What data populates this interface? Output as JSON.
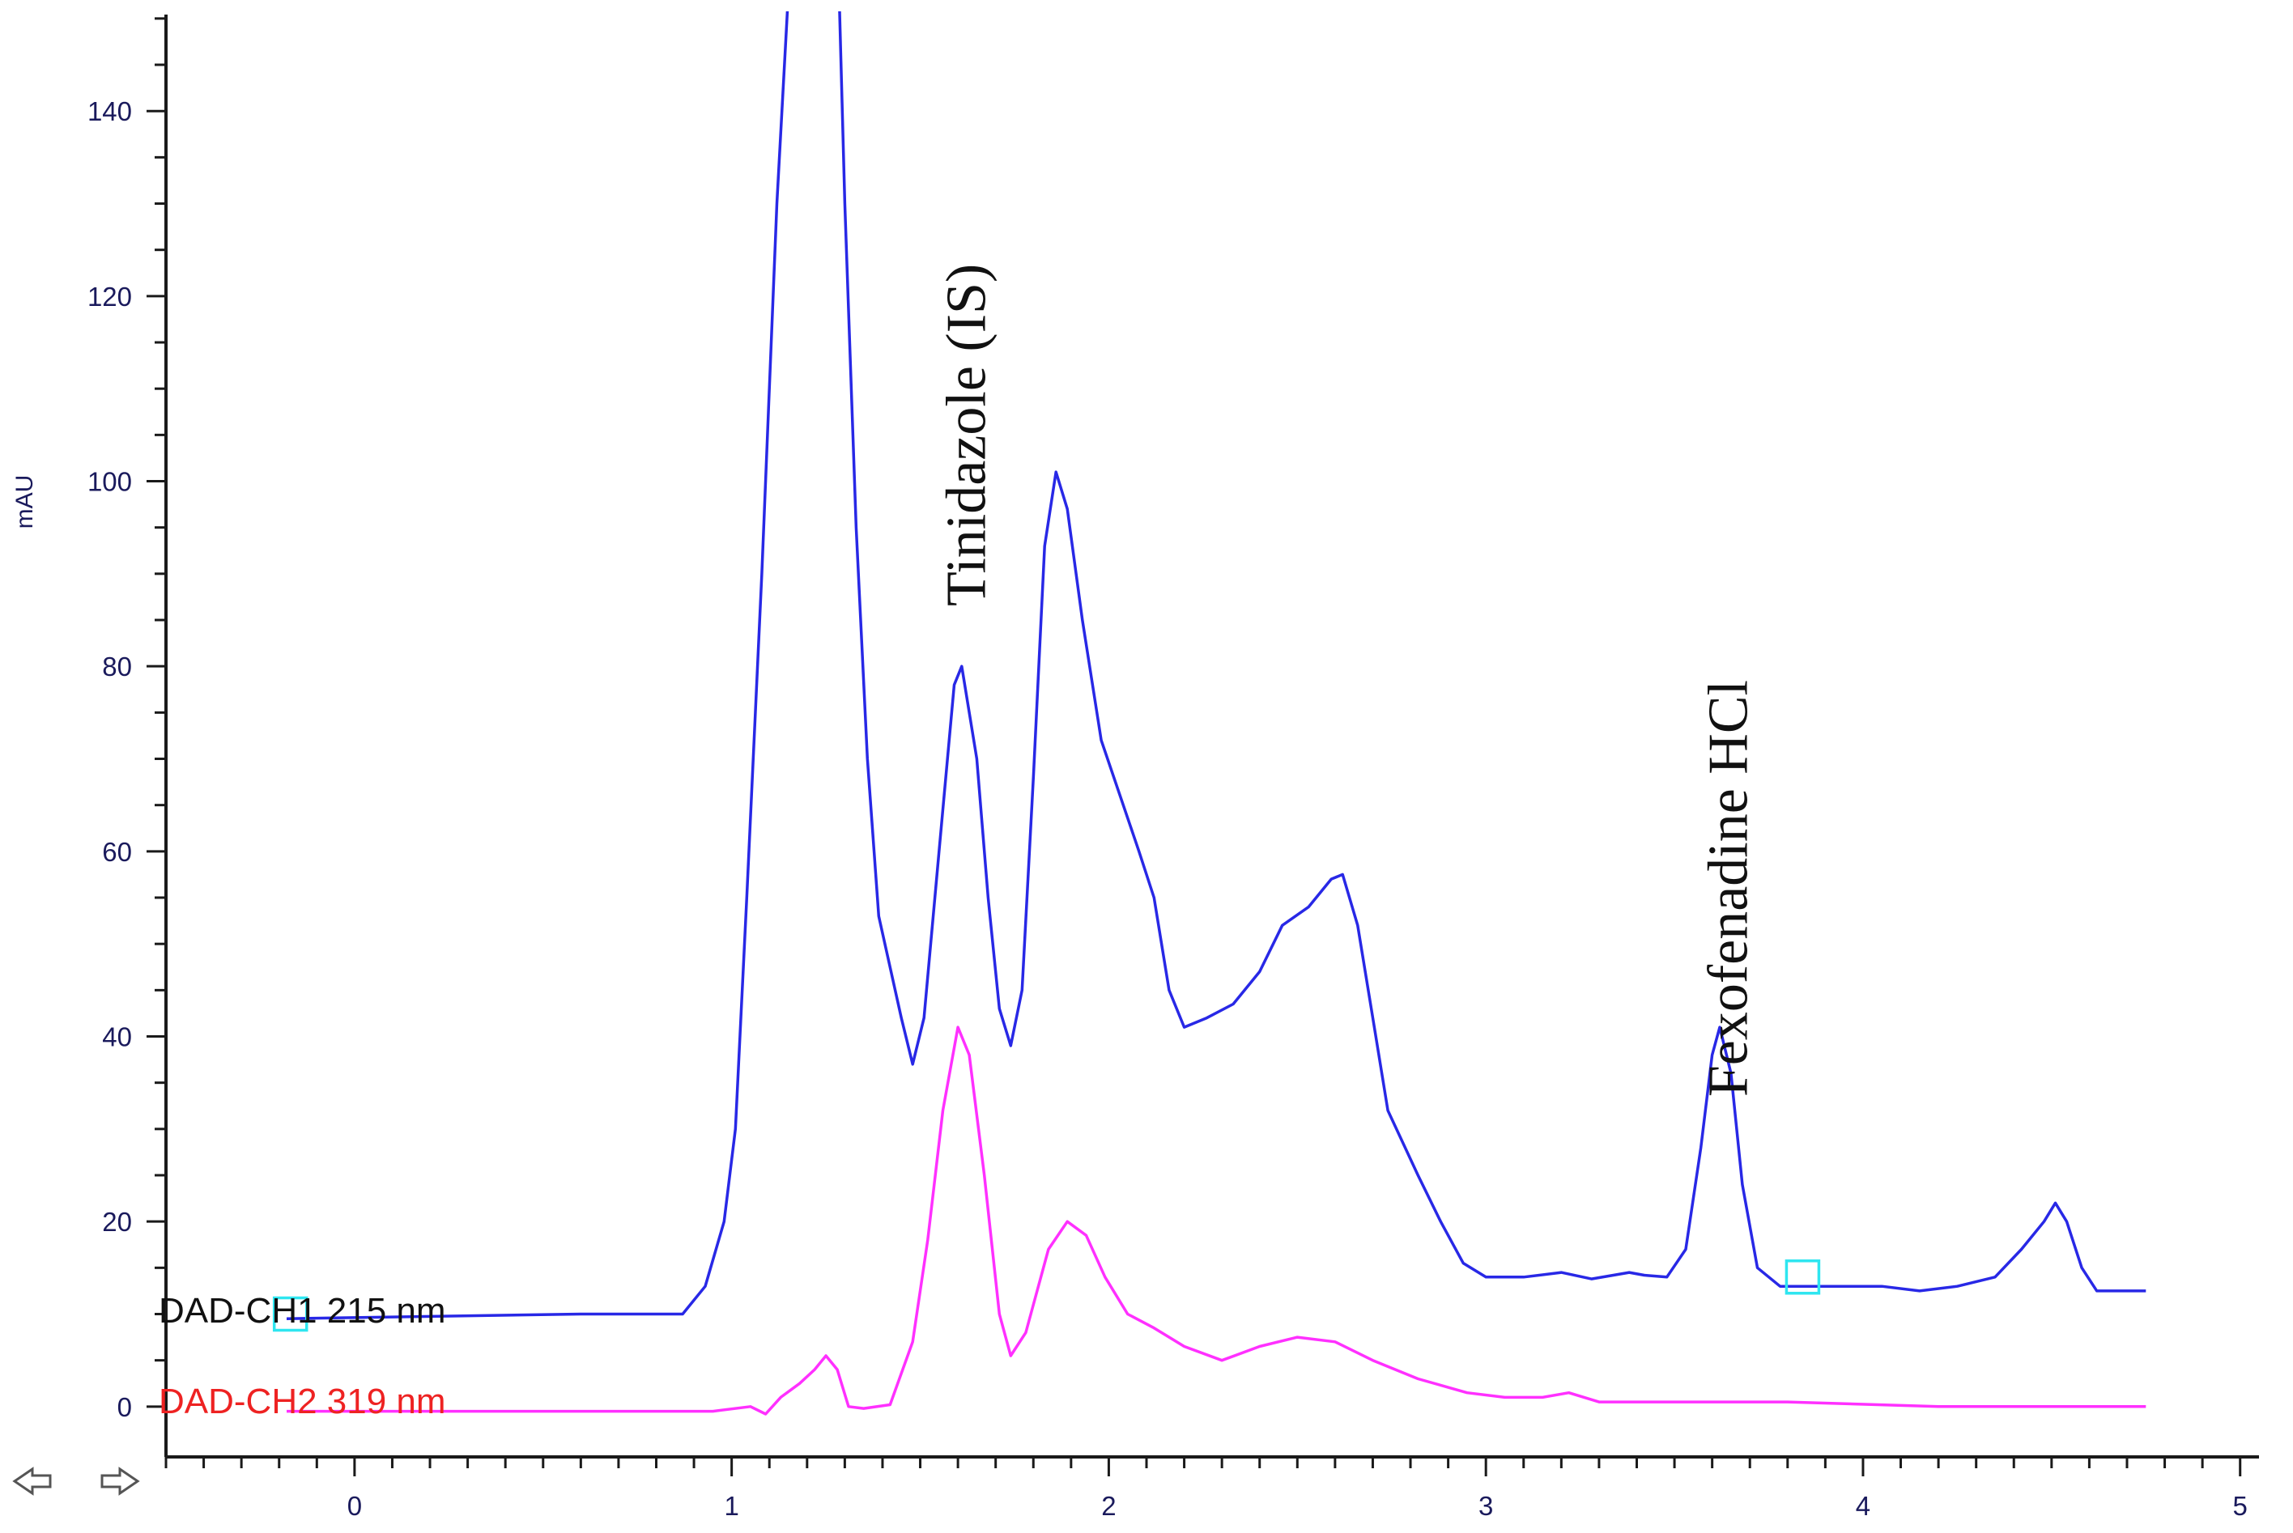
{
  "chart_data": {
    "type": "line",
    "ylabel": "mAU",
    "xlabel": "",
    "xlim": [
      -0.5,
      5.05
    ],
    "ylim": [
      -5,
      152
    ],
    "x_ticks": [
      0,
      1,
      2,
      3,
      4,
      5
    ],
    "y_ticks": [
      0,
      20,
      40,
      60,
      80,
      100,
      120,
      140
    ],
    "grid": false,
    "series": [
      {
        "name": "DAD-CH1  215 nm",
        "color": "#2828e6",
        "points": [
          [
            -0.18,
            9.5
          ],
          [
            0.6,
            10
          ],
          [
            0.87,
            10
          ],
          [
            0.93,
            13
          ],
          [
            0.98,
            20
          ],
          [
            1.01,
            30
          ],
          [
            1.04,
            55
          ],
          [
            1.08,
            90
          ],
          [
            1.12,
            130
          ],
          [
            1.16,
            160
          ],
          [
            1.28,
            160
          ],
          [
            1.3,
            130
          ],
          [
            1.33,
            95
          ],
          [
            1.36,
            70
          ],
          [
            1.39,
            53
          ],
          [
            1.45,
            42
          ],
          [
            1.48,
            37
          ],
          [
            1.51,
            42
          ],
          [
            1.55,
            60
          ],
          [
            1.59,
            78
          ],
          [
            1.61,
            80
          ],
          [
            1.65,
            70
          ],
          [
            1.68,
            55
          ],
          [
            1.71,
            43
          ],
          [
            1.74,
            39
          ],
          [
            1.77,
            45
          ],
          [
            1.8,
            68
          ],
          [
            1.83,
            93
          ],
          [
            1.86,
            101
          ],
          [
            1.89,
            97
          ],
          [
            1.93,
            85
          ],
          [
            1.98,
            72
          ],
          [
            2.03,
            66
          ],
          [
            2.08,
            60
          ],
          [
            2.12,
            55
          ],
          [
            2.16,
            45
          ],
          [
            2.2,
            41
          ],
          [
            2.26,
            42
          ],
          [
            2.33,
            43.5
          ],
          [
            2.4,
            47
          ],
          [
            2.46,
            52
          ],
          [
            2.53,
            54
          ],
          [
            2.59,
            57
          ],
          [
            2.62,
            57.5
          ],
          [
            2.66,
            52
          ],
          [
            2.7,
            42
          ],
          [
            2.74,
            32
          ],
          [
            2.82,
            25
          ],
          [
            2.88,
            20
          ],
          [
            2.94,
            15.5
          ],
          [
            3.0,
            14
          ],
          [
            3.1,
            14
          ],
          [
            3.2,
            14.5
          ],
          [
            3.28,
            13.8
          ],
          [
            3.38,
            14.5
          ],
          [
            3.42,
            14.2
          ],
          [
            3.48,
            14
          ],
          [
            3.53,
            17
          ],
          [
            3.57,
            28
          ],
          [
            3.6,
            38
          ],
          [
            3.62,
            41
          ],
          [
            3.65,
            36
          ],
          [
            3.68,
            24
          ],
          [
            3.72,
            15
          ],
          [
            3.78,
            13
          ],
          [
            3.9,
            13
          ],
          [
            4.05,
            13
          ],
          [
            4.15,
            12.5
          ],
          [
            4.25,
            13
          ],
          [
            4.35,
            14
          ],
          [
            4.42,
            17
          ],
          [
            4.48,
            20
          ],
          [
            4.51,
            22
          ],
          [
            4.54,
            20
          ],
          [
            4.58,
            15
          ],
          [
            4.62,
            12.5
          ],
          [
            4.75,
            12.5
          ]
        ]
      },
      {
        "name": "DAD-CH2  319 nm",
        "color": "#ff30ff",
        "points": [
          [
            -0.18,
            -0.5
          ],
          [
            0.95,
            -0.5
          ],
          [
            1.05,
            0
          ],
          [
            1.09,
            -0.8
          ],
          [
            1.13,
            1
          ],
          [
            1.18,
            2.5
          ],
          [
            1.22,
            4
          ],
          [
            1.25,
            5.5
          ],
          [
            1.28,
            4
          ],
          [
            1.31,
            0
          ],
          [
            1.35,
            -0.2
          ],
          [
            1.42,
            0.2
          ],
          [
            1.48,
            7
          ],
          [
            1.52,
            18
          ],
          [
            1.56,
            32
          ],
          [
            1.6,
            41
          ],
          [
            1.63,
            38
          ],
          [
            1.67,
            25
          ],
          [
            1.71,
            10
          ],
          [
            1.74,
            5.5
          ],
          [
            1.78,
            8
          ],
          [
            1.84,
            17
          ],
          [
            1.89,
            20
          ],
          [
            1.94,
            18.5
          ],
          [
            1.99,
            14
          ],
          [
            2.05,
            10
          ],
          [
            2.12,
            8.5
          ],
          [
            2.2,
            6.5
          ],
          [
            2.3,
            5
          ],
          [
            2.4,
            6.5
          ],
          [
            2.5,
            7.5
          ],
          [
            2.6,
            7
          ],
          [
            2.7,
            5
          ],
          [
            2.82,
            3
          ],
          [
            2.95,
            1.5
          ],
          [
            3.05,
            1
          ],
          [
            3.15,
            1
          ],
          [
            3.22,
            1.5
          ],
          [
            3.3,
            0.5
          ],
          [
            3.5,
            0.5
          ],
          [
            3.8,
            0.5
          ],
          [
            4.2,
            0
          ],
          [
            4.75,
            0
          ]
        ]
      }
    ],
    "annotations": [
      {
        "text": "Tinidazole (IS)",
        "x": 1.62,
        "y": 105
      },
      {
        "text": "Fexofenadine HCl",
        "x": 3.64,
        "y": 56
      }
    ],
    "markers": [
      {
        "x": -0.17,
        "y": 10
      },
      {
        "x": 3.84,
        "y": 14
      }
    ]
  }
}
